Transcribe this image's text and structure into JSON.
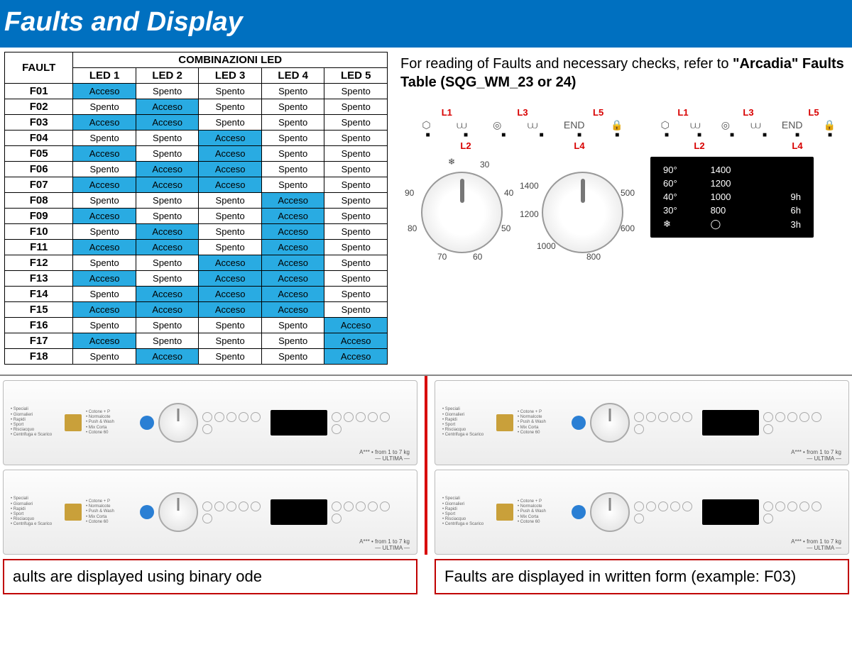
{
  "header": "Faults and Display",
  "table": {
    "col_fault": "FAULT",
    "col_group": "COMBINAZIONI LED",
    "leds": [
      "LED 1",
      "LED 2",
      "LED 3",
      "LED 4",
      "LED 5"
    ],
    "on_label": "Acceso",
    "off_label": "Spento",
    "acceso_bg": "#29abe2",
    "rows": [
      {
        "code": "F01",
        "leds": [
          1,
          0,
          0,
          0,
          0
        ]
      },
      {
        "code": "F02",
        "leds": [
          0,
          1,
          0,
          0,
          0
        ]
      },
      {
        "code": "F03",
        "leds": [
          1,
          1,
          0,
          0,
          0
        ]
      },
      {
        "code": "F04",
        "leds": [
          0,
          0,
          1,
          0,
          0
        ]
      },
      {
        "code": "F05",
        "leds": [
          1,
          0,
          1,
          0,
          0
        ]
      },
      {
        "code": "F06",
        "leds": [
          0,
          1,
          1,
          0,
          0
        ]
      },
      {
        "code": "F07",
        "leds": [
          1,
          1,
          1,
          0,
          0
        ]
      },
      {
        "code": "F08",
        "leds": [
          0,
          0,
          0,
          1,
          0
        ]
      },
      {
        "code": "F09",
        "leds": [
          1,
          0,
          0,
          1,
          0
        ]
      },
      {
        "code": "F10",
        "leds": [
          0,
          1,
          0,
          1,
          0
        ]
      },
      {
        "code": "F11",
        "leds": [
          1,
          1,
          0,
          1,
          0
        ]
      },
      {
        "code": "F12",
        "leds": [
          0,
          0,
          1,
          1,
          0
        ]
      },
      {
        "code": "F13",
        "leds": [
          1,
          0,
          1,
          1,
          0
        ]
      },
      {
        "code": "F14",
        "leds": [
          0,
          1,
          1,
          1,
          0
        ]
      },
      {
        "code": "F15",
        "leds": [
          1,
          1,
          1,
          1,
          0
        ]
      },
      {
        "code": "F16",
        "leds": [
          0,
          0,
          0,
          0,
          1
        ]
      },
      {
        "code": "F17",
        "leds": [
          1,
          0,
          0,
          0,
          1
        ]
      },
      {
        "code": "F18",
        "leds": [
          0,
          1,
          0,
          0,
          1
        ]
      }
    ]
  },
  "intro": {
    "prefix": "For reading of Faults and necessary checks, refer to ",
    "bold": "\"Arcadia\" Faults Table (SQG_WM_23 or 24)"
  },
  "led_labels_top": [
    "L1",
    "L3",
    "L5"
  ],
  "led_labels_bot": [
    "L2",
    "L4"
  ],
  "led_icons": [
    "⬡",
    "◎",
    "END"
  ],
  "led_icons2": [
    "⩊",
    "⩊",
    "🔒"
  ],
  "dial1": {
    "ticks": [
      "90",
      "80",
      "70",
      "60",
      "50",
      "40",
      "30"
    ],
    "top": "❄"
  },
  "dial2": {
    "ticks": [
      "1400",
      "1200",
      "1000",
      "800",
      "600",
      "500"
    ]
  },
  "digital": {
    "rows": [
      {
        "t": "90°",
        "s": "1400",
        "e": ""
      },
      {
        "t": "60°",
        "s": "1200",
        "e": ""
      },
      {
        "t": "40°",
        "s": "1000",
        "e": "9h"
      },
      {
        "t": "30°",
        "s": "800",
        "e": "6h"
      },
      {
        "t": "❄",
        "s": "◯",
        "e": "3h"
      }
    ]
  },
  "machine": {
    "programs": [
      "Speciali",
      "Giornalieri",
      "Rapidi",
      "Sport",
      "Risciacquo",
      "Centrifuga e Scarico",
      "Cotone + P",
      "Normalcote",
      "Push & Wash",
      "Mix Corta",
      "Cotone 60",
      "Cotone 40"
    ],
    "capacity": "A*** • from 1 to 7 kg",
    "sub": "ULTIMA"
  },
  "captions": {
    "left": "aults are displayed using binary ode",
    "right": "Faults are displayed in written form (example: F03)"
  },
  "colors": {
    "header_bg": "#0070c0",
    "accent_red": "#d80000",
    "border_red": "#c00000"
  }
}
